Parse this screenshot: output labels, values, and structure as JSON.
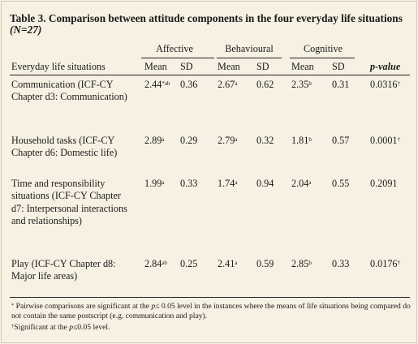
{
  "table": {
    "title_bold": "Table 3. Comparison between attitude components in the four everyday life situations",
    "title_n": "(N=27)",
    "groups": [
      "Affective",
      "Behavioural",
      "Cognitive"
    ],
    "row_header": "Everyday life situations",
    "col_mean": "Mean",
    "col_sd": "SD",
    "col_p": "p-value",
    "rows": [
      {
        "label": "Communication (ICF-CY Chapter d3: Communication)",
        "aff_mean": "2.44",
        "aff_sup": "*ab",
        "aff_sd": "0.36",
        "beh_mean": "2.67",
        "beh_sup": "a",
        "beh_sd": "0.62",
        "cog_mean": "2.35",
        "cog_sup": "b",
        "cog_sd": "0.31",
        "p": "0.0316",
        "p_sup": "†"
      },
      {
        "label": "Household tasks (ICF-CY Chapter d6: Domestic life)",
        "aff_mean": "2.89",
        "aff_sup": "a",
        "aff_sd": "0.29",
        "beh_mean": "2.79",
        "beh_sup": "a",
        "beh_sd": "0.32",
        "cog_mean": "1.81",
        "cog_sup": "b",
        "cog_sd": "0.57",
        "p": "0.0001",
        "p_sup": "†"
      },
      {
        "label": "Time and responsibility situations (ICF-CY Chapter d7: Interpersonal interactions and relationships)",
        "aff_mean": "1.99",
        "aff_sup": "a",
        "aff_sd": "0.33",
        "beh_mean": "1.74",
        "beh_sup": "a",
        "beh_sd": "0.94",
        "cog_mean": "2.04",
        "cog_sup": "a",
        "cog_sd": "0.55",
        "p": "0.2091",
        "p_sup": ""
      },
      {
        "label": "Play (ICF-CY Chapter d8: Major life areas)",
        "aff_mean": "2.84",
        "aff_sup": "ab",
        "aff_sd": "0.25",
        "beh_mean": "2.41",
        "beh_sup": "a",
        "beh_sd": "0.59",
        "cog_mean": "2.85",
        "cog_sup": "b",
        "cog_sd": "0.33",
        "p": "0.0176",
        "p_sup": "†"
      }
    ],
    "footnote1_sup": "*",
    "footnote1_a": "Pairwise comparisons are significant at the ",
    "footnote1_p": "p",
    "footnote1_b": "≤ 0.05 level in the instances where the means of life situations being compared do not contain the same postscript (e.g. communication and play).",
    "footnote2_sup": "†",
    "footnote2_a": "Significant at the ",
    "footnote2_p": "p",
    "footnote2_b": "≤0.05 level."
  }
}
